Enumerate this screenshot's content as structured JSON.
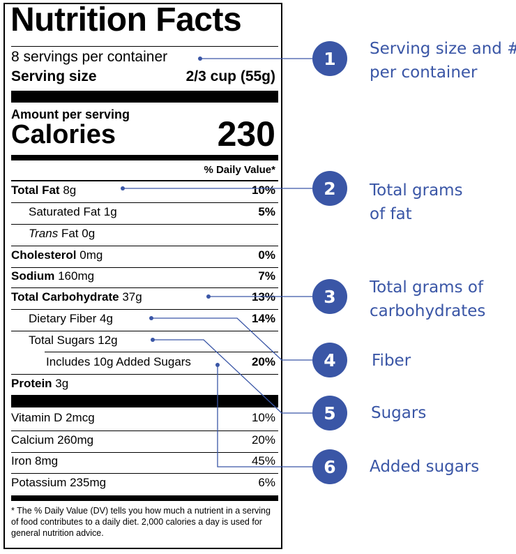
{
  "label": {
    "title": "Nutrition Facts",
    "servings": "8 servings per container",
    "serving_size_label": "Serving size",
    "serving_size_value": "2/3 cup (55g)",
    "amount_per_serving": "Amount per serving",
    "calories_label": "Calories",
    "calories_value": "230",
    "daily_value_header": "% Daily Value*",
    "nutrients": [
      {
        "name": "Total Fat",
        "amount": "8g",
        "dv": "10%"
      },
      {
        "name": "Saturated Fat",
        "amount": "1g",
        "dv": "5%"
      },
      {
        "name_italic": "Trans",
        "name": "Fat",
        "amount": "0g",
        "dv": ""
      },
      {
        "name": "Cholesterol",
        "amount": "0mg",
        "dv": "0%"
      },
      {
        "name": "Sodium",
        "amount": "160mg",
        "dv": "7%"
      },
      {
        "name": "Total Carbohydrate",
        "amount": "37g",
        "dv": "13%"
      },
      {
        "name": "Dietary Fiber",
        "amount": "4g",
        "dv": "14%"
      },
      {
        "name": "Total Sugars",
        "amount": "12g",
        "dv": ""
      },
      {
        "name": "Includes 10g Added Sugars",
        "amount": "",
        "dv": "20%"
      },
      {
        "name": "Protein",
        "amount": "3g",
        "dv": ""
      }
    ],
    "vitamins": [
      {
        "name": "Vitamin D 2mcg",
        "dv": "10%"
      },
      {
        "name": "Calcium 260mg",
        "dv": "20%"
      },
      {
        "name": "Iron 8mg",
        "dv": "45%"
      },
      {
        "name": "Potassium 235mg",
        "dv": "6%"
      }
    ],
    "footnote": "* The % Daily Value (DV) tells you how much a nutrient in a serving of food contributes to a daily diet. 2,000 calories a day is used for general nutrition advice."
  },
  "callouts": [
    {
      "number": "1",
      "line1": "Serving size and #",
      "line2": "per container"
    },
    {
      "number": "2",
      "line1": "Total grams",
      "line2": "of fat"
    },
    {
      "number": "3",
      "line1": "Total grams of",
      "line2": "carbohydrates"
    },
    {
      "number": "4",
      "line1": "Fiber",
      "line2": ""
    },
    {
      "number": "5",
      "line1": "Sugars",
      "line2": ""
    },
    {
      "number": "6",
      "line1": "Added sugars",
      "line2": ""
    }
  ],
  "colors": {
    "callout": "#3a56a6",
    "label_ink": "#000000"
  }
}
